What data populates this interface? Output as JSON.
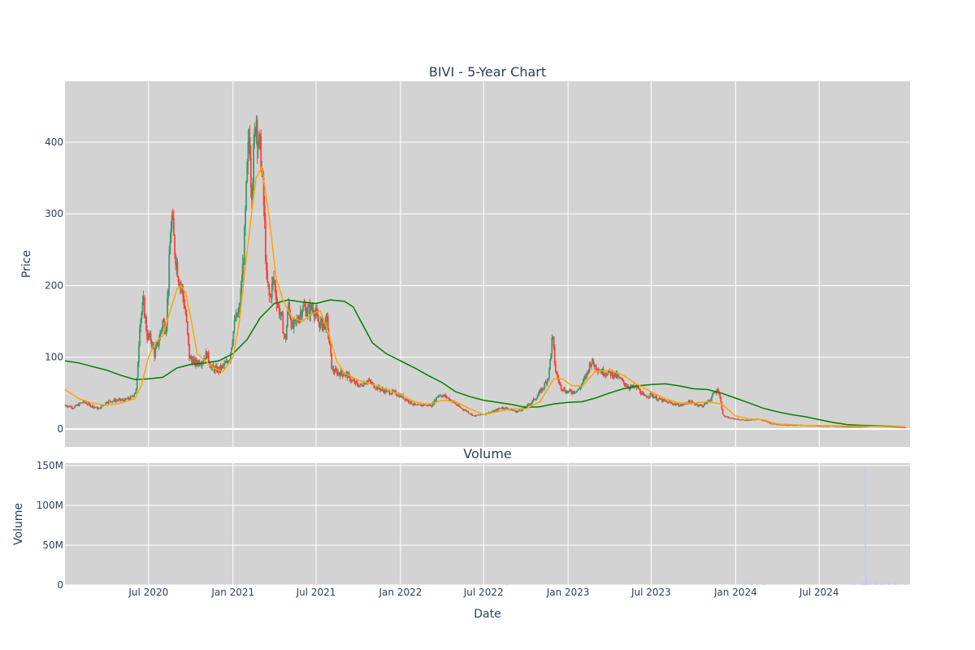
{
  "colors": {
    "plot_bg": "#d3d3d3",
    "grid": "#ffffff",
    "up": "#3d9970",
    "down": "#ff4136",
    "ma_short": "#ffa500",
    "ma_long": "#008000",
    "volume": "#c8c8ff",
    "text": "#2a3f5f"
  },
  "chart_data": [
    {
      "type": "candlestick",
      "title": "BIVI - 5-Year Chart",
      "ylabel": "Price",
      "ylim": [
        -25,
        485
      ],
      "yticks": [
        0,
        100,
        200,
        300,
        400
      ],
      "grid": true,
      "legend": "none",
      "close_points": [
        [
          "2020-01-02",
          33
        ],
        [
          "2020-01-20",
          30
        ],
        [
          "2020-02-10",
          38
        ],
        [
          "2020-02-25",
          33
        ],
        [
          "2020-03-15",
          28
        ],
        [
          "2020-04-01",
          38
        ],
        [
          "2020-04-20",
          40
        ],
        [
          "2020-05-10",
          40
        ],
        [
          "2020-05-25",
          44
        ],
        [
          "2020-06-05",
          55
        ],
        [
          "2020-06-12",
          150
        ],
        [
          "2020-06-20",
          175
        ],
        [
          "2020-06-28",
          130
        ],
        [
          "2020-07-06",
          125
        ],
        [
          "2020-07-14",
          105
        ],
        [
          "2020-07-22",
          120
        ],
        [
          "2020-08-01",
          150
        ],
        [
          "2020-08-08",
          140
        ],
        [
          "2020-08-15",
          230
        ],
        [
          "2020-08-20",
          300
        ],
        [
          "2020-08-27",
          250
        ],
        [
          "2020-09-05",
          210
        ],
        [
          "2020-09-12",
          195
        ],
        [
          "2020-09-20",
          160
        ],
        [
          "2020-09-28",
          100
        ],
        [
          "2020-10-10",
          92
        ],
        [
          "2020-10-25",
          95
        ],
        [
          "2020-11-05",
          105
        ],
        [
          "2020-11-15",
          85
        ],
        [
          "2020-12-01",
          82
        ],
        [
          "2020-12-15",
          90
        ],
        [
          "2020-12-25",
          100
        ],
        [
          "2021-01-05",
          150
        ],
        [
          "2021-01-15",
          165
        ],
        [
          "2021-01-25",
          250
        ],
        [
          "2021-02-01",
          360
        ],
        [
          "2021-02-06",
          420
        ],
        [
          "2021-02-10",
          330
        ],
        [
          "2021-02-15",
          380
        ],
        [
          "2021-02-20",
          445
        ],
        [
          "2021-02-25",
          400
        ],
        [
          "2021-03-03",
          380
        ],
        [
          "2021-03-10",
          300
        ],
        [
          "2021-03-15",
          210
        ],
        [
          "2021-03-22",
          180
        ],
        [
          "2021-03-30",
          210
        ],
        [
          "2021-04-08",
          175
        ],
        [
          "2021-04-18",
          150
        ],
        [
          "2021-04-25",
          120
        ],
        [
          "2021-05-02",
          175
        ],
        [
          "2021-05-10",
          140
        ],
        [
          "2021-05-20",
          150
        ],
        [
          "2021-06-01",
          170
        ],
        [
          "2021-06-15",
          165
        ],
        [
          "2021-06-25",
          170
        ],
        [
          "2021-07-05",
          150
        ],
        [
          "2021-07-15",
          145
        ],
        [
          "2021-07-25",
          150
        ],
        [
          "2021-08-05",
          82
        ],
        [
          "2021-08-20",
          78
        ],
        [
          "2021-09-05",
          76
        ],
        [
          "2021-09-20",
          65
        ],
        [
          "2021-10-05",
          60
        ],
        [
          "2021-10-20",
          68
        ],
        [
          "2021-11-05",
          60
        ],
        [
          "2021-11-20",
          55
        ],
        [
          "2021-12-05",
          52
        ],
        [
          "2021-12-20",
          50
        ],
        [
          "2022-01-05",
          45
        ],
        [
          "2022-01-20",
          38
        ],
        [
          "2022-02-05",
          32
        ],
        [
          "2022-02-20",
          34
        ],
        [
          "2022-03-10",
          33
        ],
        [
          "2022-03-25",
          48
        ],
        [
          "2022-04-10",
          45
        ],
        [
          "2022-04-25",
          38
        ],
        [
          "2022-05-10",
          30
        ],
        [
          "2022-05-25",
          25
        ],
        [
          "2022-06-10",
          18
        ],
        [
          "2022-06-25",
          20
        ],
        [
          "2022-07-10",
          22
        ],
        [
          "2022-07-25",
          25
        ],
        [
          "2022-08-10",
          30
        ],
        [
          "2022-08-25",
          28
        ],
        [
          "2022-09-10",
          24
        ],
        [
          "2022-09-25",
          28
        ],
        [
          "2022-10-10",
          35
        ],
        [
          "2022-10-25",
          45
        ],
        [
          "2022-11-10",
          60
        ],
        [
          "2022-11-20",
          75
        ],
        [
          "2022-11-28",
          130
        ],
        [
          "2022-12-05",
          80
        ],
        [
          "2022-12-15",
          60
        ],
        [
          "2022-12-28",
          52
        ],
        [
          "2023-01-10",
          52
        ],
        [
          "2023-01-25",
          55
        ],
        [
          "2023-02-10",
          75
        ],
        [
          "2023-02-20",
          95
        ],
        [
          "2023-03-01",
          88
        ],
        [
          "2023-03-15",
          80
        ],
        [
          "2023-04-01",
          78
        ],
        [
          "2023-04-15",
          75
        ],
        [
          "2023-05-01",
          65
        ],
        [
          "2023-05-15",
          58
        ],
        [
          "2023-06-01",
          58
        ],
        [
          "2023-06-15",
          45
        ],
        [
          "2023-07-01",
          48
        ],
        [
          "2023-07-15",
          42
        ],
        [
          "2023-08-01",
          38
        ],
        [
          "2023-08-20",
          35
        ],
        [
          "2023-09-05",
          33
        ],
        [
          "2023-09-20",
          38
        ],
        [
          "2023-10-05",
          35
        ],
        [
          "2023-10-20",
          32
        ],
        [
          "2023-11-05",
          40
        ],
        [
          "2023-11-15",
          50
        ],
        [
          "2023-11-25",
          55
        ],
        [
          "2023-12-05",
          18
        ],
        [
          "2023-12-20",
          15
        ],
        [
          "2024-01-10",
          13
        ],
        [
          "2024-02-01",
          12
        ],
        [
          "2024-02-20",
          14
        ],
        [
          "2024-03-01",
          12
        ],
        [
          "2024-03-15",
          8
        ],
        [
          "2024-04-01",
          6
        ],
        [
          "2024-05-01",
          5
        ],
        [
          "2024-06-01",
          5
        ],
        [
          "2024-07-01",
          4
        ],
        [
          "2024-08-01",
          4
        ],
        [
          "2024-09-01",
          3
        ],
        [
          "2024-10-01",
          3
        ],
        [
          "2024-11-01",
          4
        ],
        [
          "2024-12-01",
          3
        ],
        [
          "2025-01-05",
          2
        ]
      ],
      "ma_short": [
        [
          "2020-01-01",
          55
        ],
        [
          "2020-02-01",
          42
        ],
        [
          "2020-03-01",
          36
        ],
        [
          "2020-04-01",
          33
        ],
        [
          "2020-05-01",
          36
        ],
        [
          "2020-06-01",
          42
        ],
        [
          "2020-06-15",
          60
        ],
        [
          "2020-07-01",
          100
        ],
        [
          "2020-07-15",
          120
        ],
        [
          "2020-08-01",
          130
        ],
        [
          "2020-08-15",
          160
        ],
        [
          "2020-09-01",
          195
        ],
        [
          "2020-09-10",
          200
        ],
        [
          "2020-09-20",
          190
        ],
        [
          "2020-10-01",
          155
        ],
        [
          "2020-10-15",
          105
        ],
        [
          "2020-11-01",
          95
        ],
        [
          "2020-11-20",
          85
        ],
        [
          "2020-12-10",
          80
        ],
        [
          "2021-01-01",
          100
        ],
        [
          "2021-01-15",
          150
        ],
        [
          "2021-02-01",
          250
        ],
        [
          "2021-02-20",
          350
        ],
        [
          "2021-03-05",
          365
        ],
        [
          "2021-03-20",
          300
        ],
        [
          "2021-04-05",
          210
        ],
        [
          "2021-04-20",
          180
        ],
        [
          "2021-05-10",
          155
        ],
        [
          "2021-06-01",
          150
        ],
        [
          "2021-06-20",
          160
        ],
        [
          "2021-07-10",
          165
        ],
        [
          "2021-07-25",
          140
        ],
        [
          "2021-08-15",
          95
        ],
        [
          "2021-09-01",
          78
        ],
        [
          "2021-10-01",
          68
        ],
        [
          "2021-11-01",
          62
        ],
        [
          "2021-12-01",
          55
        ],
        [
          "2022-01-01",
          48
        ],
        [
          "2022-02-01",
          38
        ],
        [
          "2022-03-01",
          34
        ],
        [
          "2022-04-01",
          40
        ],
        [
          "2022-05-01",
          38
        ],
        [
          "2022-06-01",
          28
        ],
        [
          "2022-07-01",
          20
        ],
        [
          "2022-08-01",
          24
        ],
        [
          "2022-09-01",
          28
        ],
        [
          "2022-10-01",
          28
        ],
        [
          "2022-11-01",
          38
        ],
        [
          "2022-12-01",
          70
        ],
        [
          "2022-12-20",
          70
        ],
        [
          "2023-01-10",
          60
        ],
        [
          "2023-02-01",
          60
        ],
        [
          "2023-03-01",
          80
        ],
        [
          "2023-04-01",
          82
        ],
        [
          "2023-05-01",
          75
        ],
        [
          "2023-06-01",
          62
        ],
        [
          "2023-07-01",
          52
        ],
        [
          "2023-08-01",
          42
        ],
        [
          "2023-09-01",
          36
        ],
        [
          "2023-10-01",
          36
        ],
        [
          "2023-11-01",
          38
        ],
        [
          "2023-12-01",
          35
        ],
        [
          "2024-01-01",
          18
        ],
        [
          "2024-02-01",
          14
        ],
        [
          "2024-03-01",
          13
        ],
        [
          "2024-04-01",
          7
        ],
        [
          "2024-06-01",
          5
        ],
        [
          "2024-09-01",
          4
        ],
        [
          "2025-01-05",
          3
        ]
      ],
      "ma_long": [
        [
          "2020-01-01",
          95
        ],
        [
          "2020-02-01",
          92
        ],
        [
          "2020-03-01",
          87
        ],
        [
          "2020-04-01",
          82
        ],
        [
          "2020-05-01",
          75
        ],
        [
          "2020-06-01",
          69
        ],
        [
          "2020-07-01",
          70
        ],
        [
          "2020-08-01",
          72
        ],
        [
          "2020-09-01",
          85
        ],
        [
          "2020-10-01",
          90
        ],
        [
          "2020-11-01",
          92
        ],
        [
          "2020-12-01",
          95
        ],
        [
          "2021-01-01",
          105
        ],
        [
          "2021-02-01",
          125
        ],
        [
          "2021-03-01",
          155
        ],
        [
          "2021-04-01",
          175
        ],
        [
          "2021-05-01",
          180
        ],
        [
          "2021-06-01",
          177
        ],
        [
          "2021-07-01",
          175
        ],
        [
          "2021-08-01",
          180
        ],
        [
          "2021-09-01",
          178
        ],
        [
          "2021-09-20",
          170
        ],
        [
          "2021-10-15",
          140
        ],
        [
          "2021-11-01",
          120
        ],
        [
          "2021-12-01",
          105
        ],
        [
          "2022-01-01",
          95
        ],
        [
          "2022-02-01",
          85
        ],
        [
          "2022-03-01",
          75
        ],
        [
          "2022-04-01",
          65
        ],
        [
          "2022-05-01",
          52
        ],
        [
          "2022-06-01",
          45
        ],
        [
          "2022-07-01",
          40
        ],
        [
          "2022-08-01",
          37
        ],
        [
          "2022-09-01",
          34
        ],
        [
          "2022-10-01",
          30
        ],
        [
          "2022-11-01",
          31
        ],
        [
          "2022-12-01",
          35
        ],
        [
          "2023-01-01",
          37
        ],
        [
          "2023-02-01",
          38
        ],
        [
          "2023-03-01",
          43
        ],
        [
          "2023-04-01",
          50
        ],
        [
          "2023-05-01",
          56
        ],
        [
          "2023-06-01",
          60
        ],
        [
          "2023-07-01",
          62
        ],
        [
          "2023-08-01",
          63
        ],
        [
          "2023-09-01",
          60
        ],
        [
          "2023-10-01",
          56
        ],
        [
          "2023-11-01",
          55
        ],
        [
          "2023-12-01",
          50
        ],
        [
          "2024-01-01",
          43
        ],
        [
          "2024-02-01",
          36
        ],
        [
          "2024-03-01",
          29
        ],
        [
          "2024-04-01",
          24
        ],
        [
          "2024-05-01",
          20
        ],
        [
          "2024-06-01",
          17
        ],
        [
          "2024-07-01",
          13
        ],
        [
          "2024-08-01",
          9
        ],
        [
          "2024-09-01",
          6
        ],
        [
          "2024-10-01",
          5
        ],
        [
          "2025-01-05",
          3
        ]
      ]
    },
    {
      "type": "bar",
      "title": "Volume",
      "xlabel": "Date",
      "ylabel": "Volume",
      "ylim": [
        0,
        153000000
      ],
      "yticks": [
        0,
        50000000,
        100000000,
        150000000
      ],
      "ytick_labels": [
        "0",
        "50M",
        "100M",
        "150M"
      ],
      "xlim": [
        "2020-01-01",
        "2025-01-15"
      ],
      "xticks": [
        "2020-07-01",
        "2021-01-01",
        "2021-07-01",
        "2022-01-01",
        "2022-07-01",
        "2023-01-01",
        "2023-07-01",
        "2024-01-01",
        "2024-07-01"
      ],
      "xtick_labels": [
        "Jul 2020",
        "Jan 2021",
        "Jul 2021",
        "Jan 2022",
        "Jul 2022",
        "Jan 2023",
        "Jul 2023",
        "Jan 2024",
        "Jul 2024"
      ],
      "points": [
        [
          "2022-08-20",
          1500000
        ],
        [
          "2024-01-20",
          3500000
        ],
        [
          "2024-02-05",
          2000000
        ],
        [
          "2024-03-01",
          1500000
        ],
        [
          "2024-09-15",
          2000000
        ],
        [
          "2024-10-05",
          4000000
        ],
        [
          "2024-10-10",
          148000000
        ],
        [
          "2024-10-14",
          10000000
        ],
        [
          "2024-10-20",
          6000000
        ],
        [
          "2024-11-01",
          5000000
        ],
        [
          "2024-11-15",
          4000000
        ],
        [
          "2024-12-01",
          4000000
        ],
        [
          "2024-12-15",
          3500000
        ],
        [
          "2025-01-05",
          3000000
        ]
      ]
    }
  ]
}
